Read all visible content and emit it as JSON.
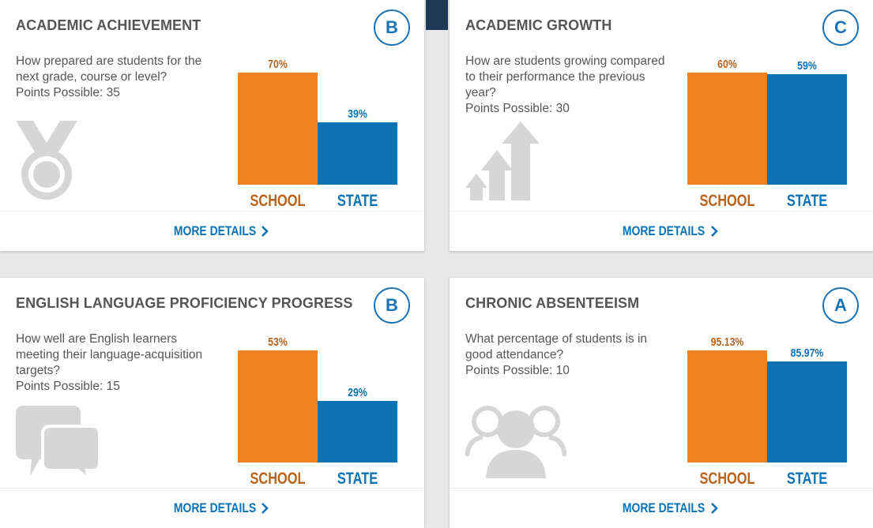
{
  "colors": {
    "school": "#f0831f",
    "state": "#0b72b5",
    "accent": "#1a73b5",
    "icon_gray": "#d6d6d6"
  },
  "cards": [
    {
      "title": "ACADEMIC ACHIEVEMENT",
      "grade": "B",
      "question": "How prepared are students for the next grade, course or level?",
      "points": "Points Possible: 35",
      "icon": "medal-icon",
      "school_label": "SCHOOL",
      "state_label": "STATE",
      "school_value_text": "70%",
      "state_value_text": "39%",
      "more_details": "MORE DETAILS"
    },
    {
      "title": "ACADEMIC GROWTH",
      "grade": "C",
      "question": "How are students growing compared to their performance the previous year?",
      "points": "Points Possible: 30",
      "icon": "growth-arrows-icon",
      "school_label": "SCHOOL",
      "state_label": "STATE",
      "school_value_text": "60%",
      "state_value_text": "59%",
      "more_details": "MORE DETAILS"
    },
    {
      "title": "ENGLISH LANGUAGE PROFICIENCY PROGRESS",
      "grade": "B",
      "question": "How well are English learners meeting their language-acquisition targets?",
      "points": "Points Possible: 15",
      "icon": "speech-bubbles-icon",
      "school_label": "SCHOOL",
      "state_label": "STATE",
      "school_value_text": "53%",
      "state_value_text": "29%",
      "more_details": "MORE DETAILS"
    },
    {
      "title": "CHRONIC ABSENTEEISM",
      "grade": "A",
      "question": "What percentage of students is in good attendance?",
      "points": "Points Possible: 10",
      "icon": "people-group-icon",
      "school_label": "SCHOOL",
      "state_label": "STATE",
      "school_value_text": "95.13%",
      "state_value_text": "85.97%",
      "more_details": "MORE DETAILS"
    }
  ],
  "chart_data": [
    {
      "type": "bar",
      "categories": [
        "SCHOOL",
        "STATE"
      ],
      "values": [
        70,
        39
      ],
      "ylim": [
        0,
        70
      ]
    },
    {
      "type": "bar",
      "categories": [
        "SCHOOL",
        "STATE"
      ],
      "values": [
        60,
        59
      ],
      "ylim": [
        0,
        60
      ]
    },
    {
      "type": "bar",
      "categories": [
        "SCHOOL",
        "STATE"
      ],
      "values": [
        53,
        29
      ],
      "ylim": [
        0,
        53
      ]
    },
    {
      "type": "bar",
      "categories": [
        "SCHOOL",
        "STATE"
      ],
      "values": [
        95.13,
        85.97
      ],
      "ylim": [
        0,
        95.13
      ]
    }
  ]
}
